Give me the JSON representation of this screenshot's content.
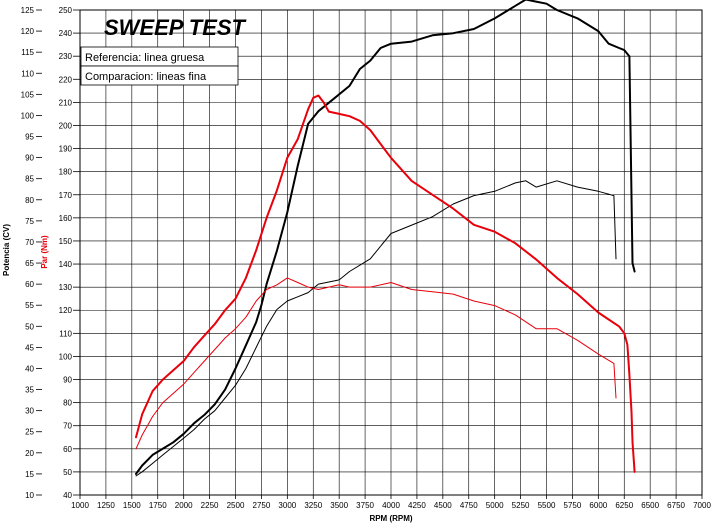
{
  "chart_data": {
    "type": "line",
    "title": "SWEEP TEST",
    "legend": [
      "Referencia: linea gruesa",
      "Comparacion: lineas fina"
    ],
    "legend_position": "top-left",
    "xlabel": "RPM (RPM)",
    "ylabel_left": "Potencia (CV)",
    "ylabel_right": "Par (Nm)",
    "grid": true,
    "xlim": [
      1000,
      7000
    ],
    "ylim_power": [
      10,
      125
    ],
    "ylim_torque": [
      40,
      250
    ],
    "x_ticks": [
      1000,
      1250,
      1500,
      1750,
      2000,
      2250,
      2500,
      2750,
      3000,
      3250,
      3500,
      3750,
      4000,
      4250,
      4500,
      4750,
      5000,
      5250,
      5500,
      5750,
      6000,
      6250,
      6500,
      6750,
      7000
    ],
    "power_ticks": [
      10,
      15,
      20,
      25,
      30,
      35,
      40,
      45,
      50,
      55,
      60,
      65,
      70,
      75,
      80,
      85,
      90,
      95,
      100,
      105,
      110,
      115,
      120,
      125
    ],
    "torque_ticks": [
      40,
      50,
      60,
      70,
      80,
      90,
      100,
      110,
      120,
      130,
      140,
      150,
      160,
      170,
      180,
      190,
      200,
      210,
      220,
      230,
      240,
      250
    ],
    "series": [
      {
        "color": "#000000",
        "line": "thick",
        "axis": "power",
        "x": [
          1540,
          1600,
          1700,
          1800,
          1900,
          2000,
          2100,
          2200,
          2300,
          2400,
          2500,
          2600,
          2700,
          2750,
          2800,
          2900,
          3000,
          3100,
          3200,
          3300,
          3400,
          3500,
          3600,
          3700,
          3800,
          3900,
          4000,
          4200,
          4400,
          4600,
          4800,
          5000,
          5200,
          5300,
          5400,
          5500,
          5600,
          5800,
          6000,
          6100,
          6200,
          6250,
          6300,
          6330,
          6350
        ],
        "y": [
          15,
          17,
          19.5,
          21,
          22.5,
          24.5,
          27,
          29,
          31.5,
          35,
          40,
          45.5,
          51,
          55,
          60,
          68,
          77,
          88,
          98,
          101,
          103,
          105,
          107,
          111,
          113,
          116,
          117,
          117.5,
          119,
          119.5,
          120.5,
          123,
          126,
          127.5,
          127,
          126.5,
          125,
          123,
          120,
          117,
          116,
          115.5,
          114,
          65,
          63
        ]
      },
      {
        "color": "#000000",
        "line": "thin",
        "axis": "power",
        "x": [
          1540,
          1600,
          1700,
          1800,
          1900,
          2000,
          2100,
          2200,
          2300,
          2400,
          2500,
          2600,
          2700,
          2800,
          2900,
          3000,
          3100,
          3200,
          3300,
          3400,
          3500,
          3600,
          3800,
          4000,
          4200,
          4400,
          4600,
          4800,
          5000,
          5200,
          5300,
          5400,
          5600,
          5800,
          6000,
          6150,
          6170
        ],
        "y": [
          14.5,
          15.5,
          17.5,
          19.5,
          21.5,
          23.5,
          25.5,
          28,
          30,
          33,
          36,
          40,
          45,
          50,
          54,
          56,
          57,
          58,
          60,
          60.5,
          61,
          63,
          66,
          72,
          74,
          76,
          79,
          81,
          82,
          84,
          84.5,
          83,
          84.5,
          83,
          82,
          81,
          66
        ]
      },
      {
        "color": "#e8000b",
        "line": "thick",
        "axis": "torque",
        "x": [
          1540,
          1600,
          1700,
          1800,
          1900,
          2000,
          2100,
          2200,
          2300,
          2400,
          2500,
          2600,
          2700,
          2800,
          2900,
          3000,
          3100,
          3200,
          3250,
          3300,
          3350,
          3400,
          3500,
          3600,
          3700,
          3800,
          3900,
          4000,
          4200,
          4400,
          4600,
          4800,
          5000,
          5200,
          5400,
          5600,
          5800,
          6000,
          6100,
          6200,
          6250,
          6280,
          6300,
          6320,
          6330,
          6350
        ],
        "y": [
          65,
          75,
          85,
          90,
          94,
          98,
          104,
          109,
          114,
          120,
          125,
          134,
          146,
          160,
          172,
          186,
          194,
          207,
          212,
          213,
          210,
          206,
          205,
          204,
          202,
          198,
          192,
          186,
          176,
          170,
          164,
          157,
          154,
          149,
          142,
          134,
          127,
          119,
          116,
          113,
          110,
          105,
          92,
          76,
          63,
          50
        ]
      },
      {
        "color": "#e8000b",
        "line": "thin",
        "axis": "torque",
        "x": [
          1540,
          1600,
          1700,
          1800,
          1900,
          2000,
          2100,
          2200,
          2300,
          2400,
          2500,
          2600,
          2700,
          2800,
          2900,
          3000,
          3100,
          3200,
          3300,
          3400,
          3500,
          3600,
          3800,
          4000,
          4200,
          4400,
          4600,
          4800,
          5000,
          5200,
          5400,
          5600,
          5800,
          6000,
          6150,
          6170
        ],
        "y": [
          60,
          66,
          74,
          80,
          84,
          88,
          93,
          98,
          103,
          108,
          112,
          117,
          124,
          129,
          131,
          134,
          132,
          130,
          129,
          130,
          131,
          130,
          130,
          132,
          129,
          128,
          127,
          124,
          122,
          118,
          112,
          112,
          107,
          101,
          97,
          82
        ]
      }
    ]
  }
}
